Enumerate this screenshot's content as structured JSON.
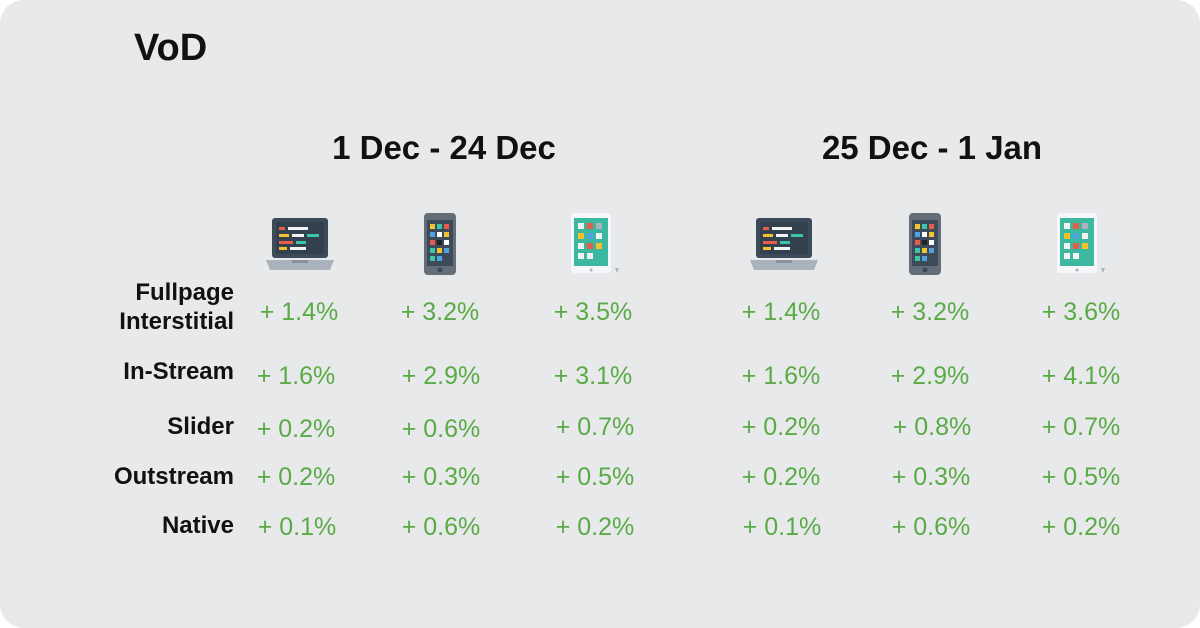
{
  "title": "VoD",
  "periods": [
    "1 Dec - 24 Dec",
    "25 Dec - 1 Jan"
  ],
  "device_icons": [
    "laptop-icon",
    "smartphone-icon",
    "tablet-icon"
  ],
  "colors": {
    "background": "#e8e9eb",
    "value": "#5aaa46",
    "text": "#111111"
  },
  "rows": [
    {
      "label": "Fullpage Interstitial",
      "values": [
        "+ 1.4%",
        "+ 3.2%",
        "+ 3.5%",
        "+ 1.4%",
        "+ 3.2%",
        "+ 3.6%"
      ]
    },
    {
      "label": "In-Stream",
      "values": [
        "+ 1.6%",
        "+ 2.9%",
        "+ 3.1%",
        "+ 1.6%",
        "+ 2.9%",
        "+ 4.1%"
      ]
    },
    {
      "label": "Slider",
      "values": [
        "+ 0.2%",
        "+ 0.6%",
        "+ 0.7%",
        "+ 0.2%",
        "+ 0.8%",
        "+ 0.7%"
      ]
    },
    {
      "label": "Outstream",
      "values": [
        "+ 0.2%",
        "+ 0.3%",
        "+ 0.5%",
        "+ 0.2%",
        "+ 0.3%",
        "+ 0.5%"
      ]
    },
    {
      "label": "Native",
      "values": [
        "+ 0.1%",
        "+ 0.6%",
        "+ 0.2%",
        "+ 0.1%",
        "+ 0.6%",
        "+ 0.2%"
      ]
    }
  ]
}
